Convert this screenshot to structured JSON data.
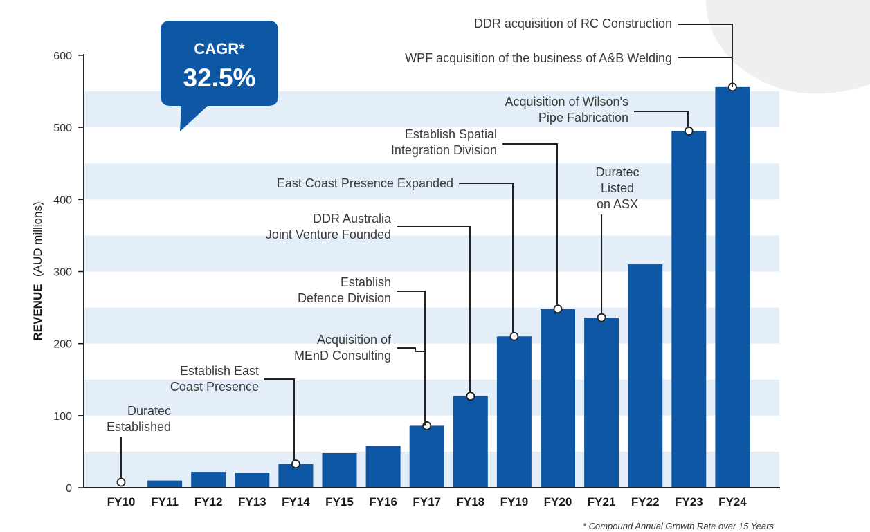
{
  "colors": {
    "bar": "#0d57a4",
    "band": "#e3eef8",
    "callout": "#0d57a4",
    "leader": "#222222"
  },
  "chart_data": {
    "type": "bar",
    "title": "",
    "xlabel": "",
    "ylabel_bold": "REVENUE",
    "ylabel_rest": "(AUD millions)",
    "ylim": [
      0,
      600
    ],
    "yticks": [
      0,
      100,
      200,
      300,
      400,
      500,
      600
    ],
    "categories": [
      "FY10",
      "FY11",
      "FY12",
      "FY13",
      "FY14",
      "FY15",
      "FY16",
      "FY17",
      "FY18",
      "FY19",
      "FY20",
      "FY21",
      "FY22",
      "FY23",
      "FY24"
    ],
    "values": [
      0,
      10,
      22,
      21,
      33,
      48,
      58,
      86,
      127,
      210,
      248,
      236,
      310,
      495,
      556
    ],
    "cagr_label": "CAGR*",
    "cagr_value": "32.5%",
    "footnote": "* Compound Annual Growth Rate over 15 Years",
    "annotations": [
      {
        "cat": 0,
        "lines": [
          "Duratec",
          "Established"
        ]
      },
      {
        "cat": 4,
        "lines": [
          "Establish East",
          "Coast Presence"
        ]
      },
      {
        "cat": 7,
        "lines": [
          "Acquisition of",
          "MEnD Consulting"
        ]
      },
      {
        "cat": 7,
        "lines": [
          "Establish",
          "Defence Division"
        ]
      },
      {
        "cat": 8,
        "lines": [
          "DDR Australia",
          "Joint Venture Founded"
        ]
      },
      {
        "cat": 9,
        "lines": [
          "East Coast Presence Expanded"
        ]
      },
      {
        "cat": 10,
        "lines": [
          "Establish Spatial",
          "Integration Division"
        ]
      },
      {
        "cat": 11,
        "lines": [
          "Duratec",
          "Listed",
          "on ASX"
        ]
      },
      {
        "cat": 13,
        "lines": [
          "Acquisition of Wilson's",
          "Pipe Fabrication"
        ]
      },
      {
        "cat": 14,
        "lines": [
          "WPF acquisition of the business of A&B Welding"
        ]
      },
      {
        "cat": 14,
        "lines": [
          "DDR acquisition of RC Construction"
        ]
      }
    ]
  }
}
